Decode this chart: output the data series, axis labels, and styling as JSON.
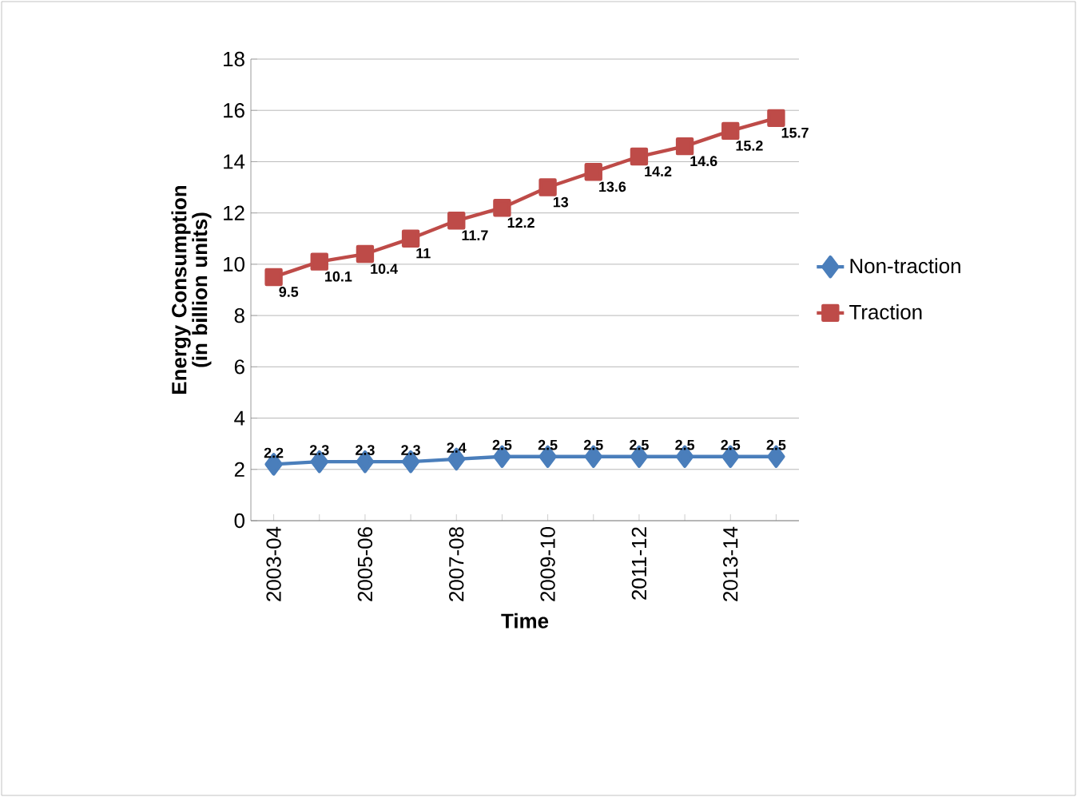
{
  "chart_data": {
    "type": "line",
    "xlabel": "Time",
    "ylabel": "Energy Consumption (in billion units)",
    "categories": [
      "2003-04",
      null,
      "2005-06",
      null,
      "2007-08",
      null,
      "2009-10",
      null,
      "2011-12",
      null,
      "2013-14",
      null
    ],
    "series": [
      {
        "name": "Non-traction",
        "color": "#4a7ebb",
        "marker": "diamond",
        "values": [
          2.2,
          2.3,
          2.3,
          2.3,
          2.4,
          2.5,
          2.5,
          2.5,
          2.5,
          2.5,
          2.5,
          2.5
        ]
      },
      {
        "name": "Traction",
        "color": "#be4b48",
        "marker": "square",
        "values": [
          9.5,
          10.1,
          10.4,
          11,
          11.7,
          12.2,
          13,
          13.6,
          14.2,
          14.6,
          15.2,
          15.7
        ]
      }
    ],
    "ylim": [
      0,
      18
    ],
    "yticks": [
      0,
      2,
      4,
      6,
      8,
      10,
      12,
      14,
      16,
      18
    ],
    "grid": "y",
    "legend": "right",
    "data_labels": true
  }
}
